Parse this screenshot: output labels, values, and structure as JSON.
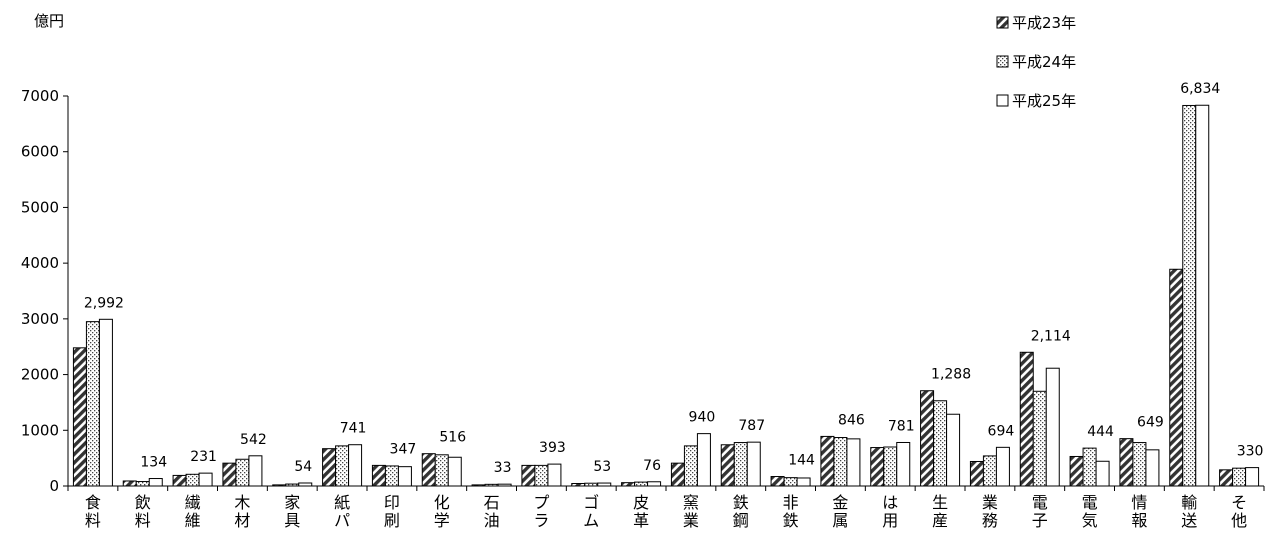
{
  "chart_data": {
    "type": "bar",
    "unit_label": "億円",
    "ylim": [
      0,
      7000
    ],
    "yticks": [
      "0",
      "1000",
      "2000",
      "3000",
      "4000",
      "5000",
      "6000",
      "7000"
    ],
    "grid": false,
    "legend_position": "top-right",
    "categories": [
      "食料",
      "飲料",
      "繊維",
      "木材",
      "家具",
      "紙パ",
      "印刷",
      "化学",
      "石油",
      "プラ",
      "ゴム",
      "皮革",
      "窯業",
      "鉄鋼",
      "非鉄",
      "金属",
      "は用",
      "生産",
      "業務",
      "電子",
      "電気",
      "情報",
      "輸送",
      "その他"
    ],
    "category_labels": [
      "食\n料",
      "飲\n料",
      "繊\n維",
      "木\n材",
      "家\n具",
      "紙\nパ",
      "印\n刷",
      "化\n学",
      "石\n油",
      "プ\nラ",
      "ゴ\nム",
      "皮\n革",
      "窯\n業",
      "鉄\n鋼",
      "非\n鉄",
      "金\n属",
      "は\n用",
      "生\n産",
      "業\n務",
      "電\n子",
      "電\n気",
      "情\n報",
      "輸\n送",
      "そ\n他"
    ],
    "series": [
      {
        "name": "平成23年",
        "pattern": "hatch",
        "values": [
          2480,
          90,
          190,
          410,
          20,
          670,
          370,
          580,
          20,
          370,
          45,
          60,
          410,
          740,
          170,
          890,
          690,
          1710,
          440,
          2400,
          530,
          850,
          3890,
          290
        ]
      },
      {
        "name": "平成24年",
        "pattern": "dots",
        "values": [
          2950,
          80,
          210,
          480,
          35,
          720,
          360,
          560,
          30,
          370,
          50,
          70,
          720,
          780,
          150,
          870,
          700,
          1530,
          540,
          1700,
          680,
          780,
          6830,
          320
        ]
      },
      {
        "name": "平成25年",
        "pattern": "blank",
        "values": [
          2992,
          134,
          231,
          542,
          54,
          741,
          347,
          516,
          33,
          393,
          53,
          76,
          940,
          787,
          144,
          846,
          781,
          1288,
          694,
          2114,
          444,
          649,
          6834,
          330
        ]
      }
    ],
    "data_labels": [
      "2,992",
      "134",
      "231",
      "542",
      "54",
      "741",
      "347",
      "516",
      "33",
      "393",
      "53",
      "76",
      "940",
      "787",
      "144",
      "846",
      "781",
      "1,288",
      "694",
      "2,114",
      "444",
      "649",
      "6,834",
      "330"
    ]
  }
}
